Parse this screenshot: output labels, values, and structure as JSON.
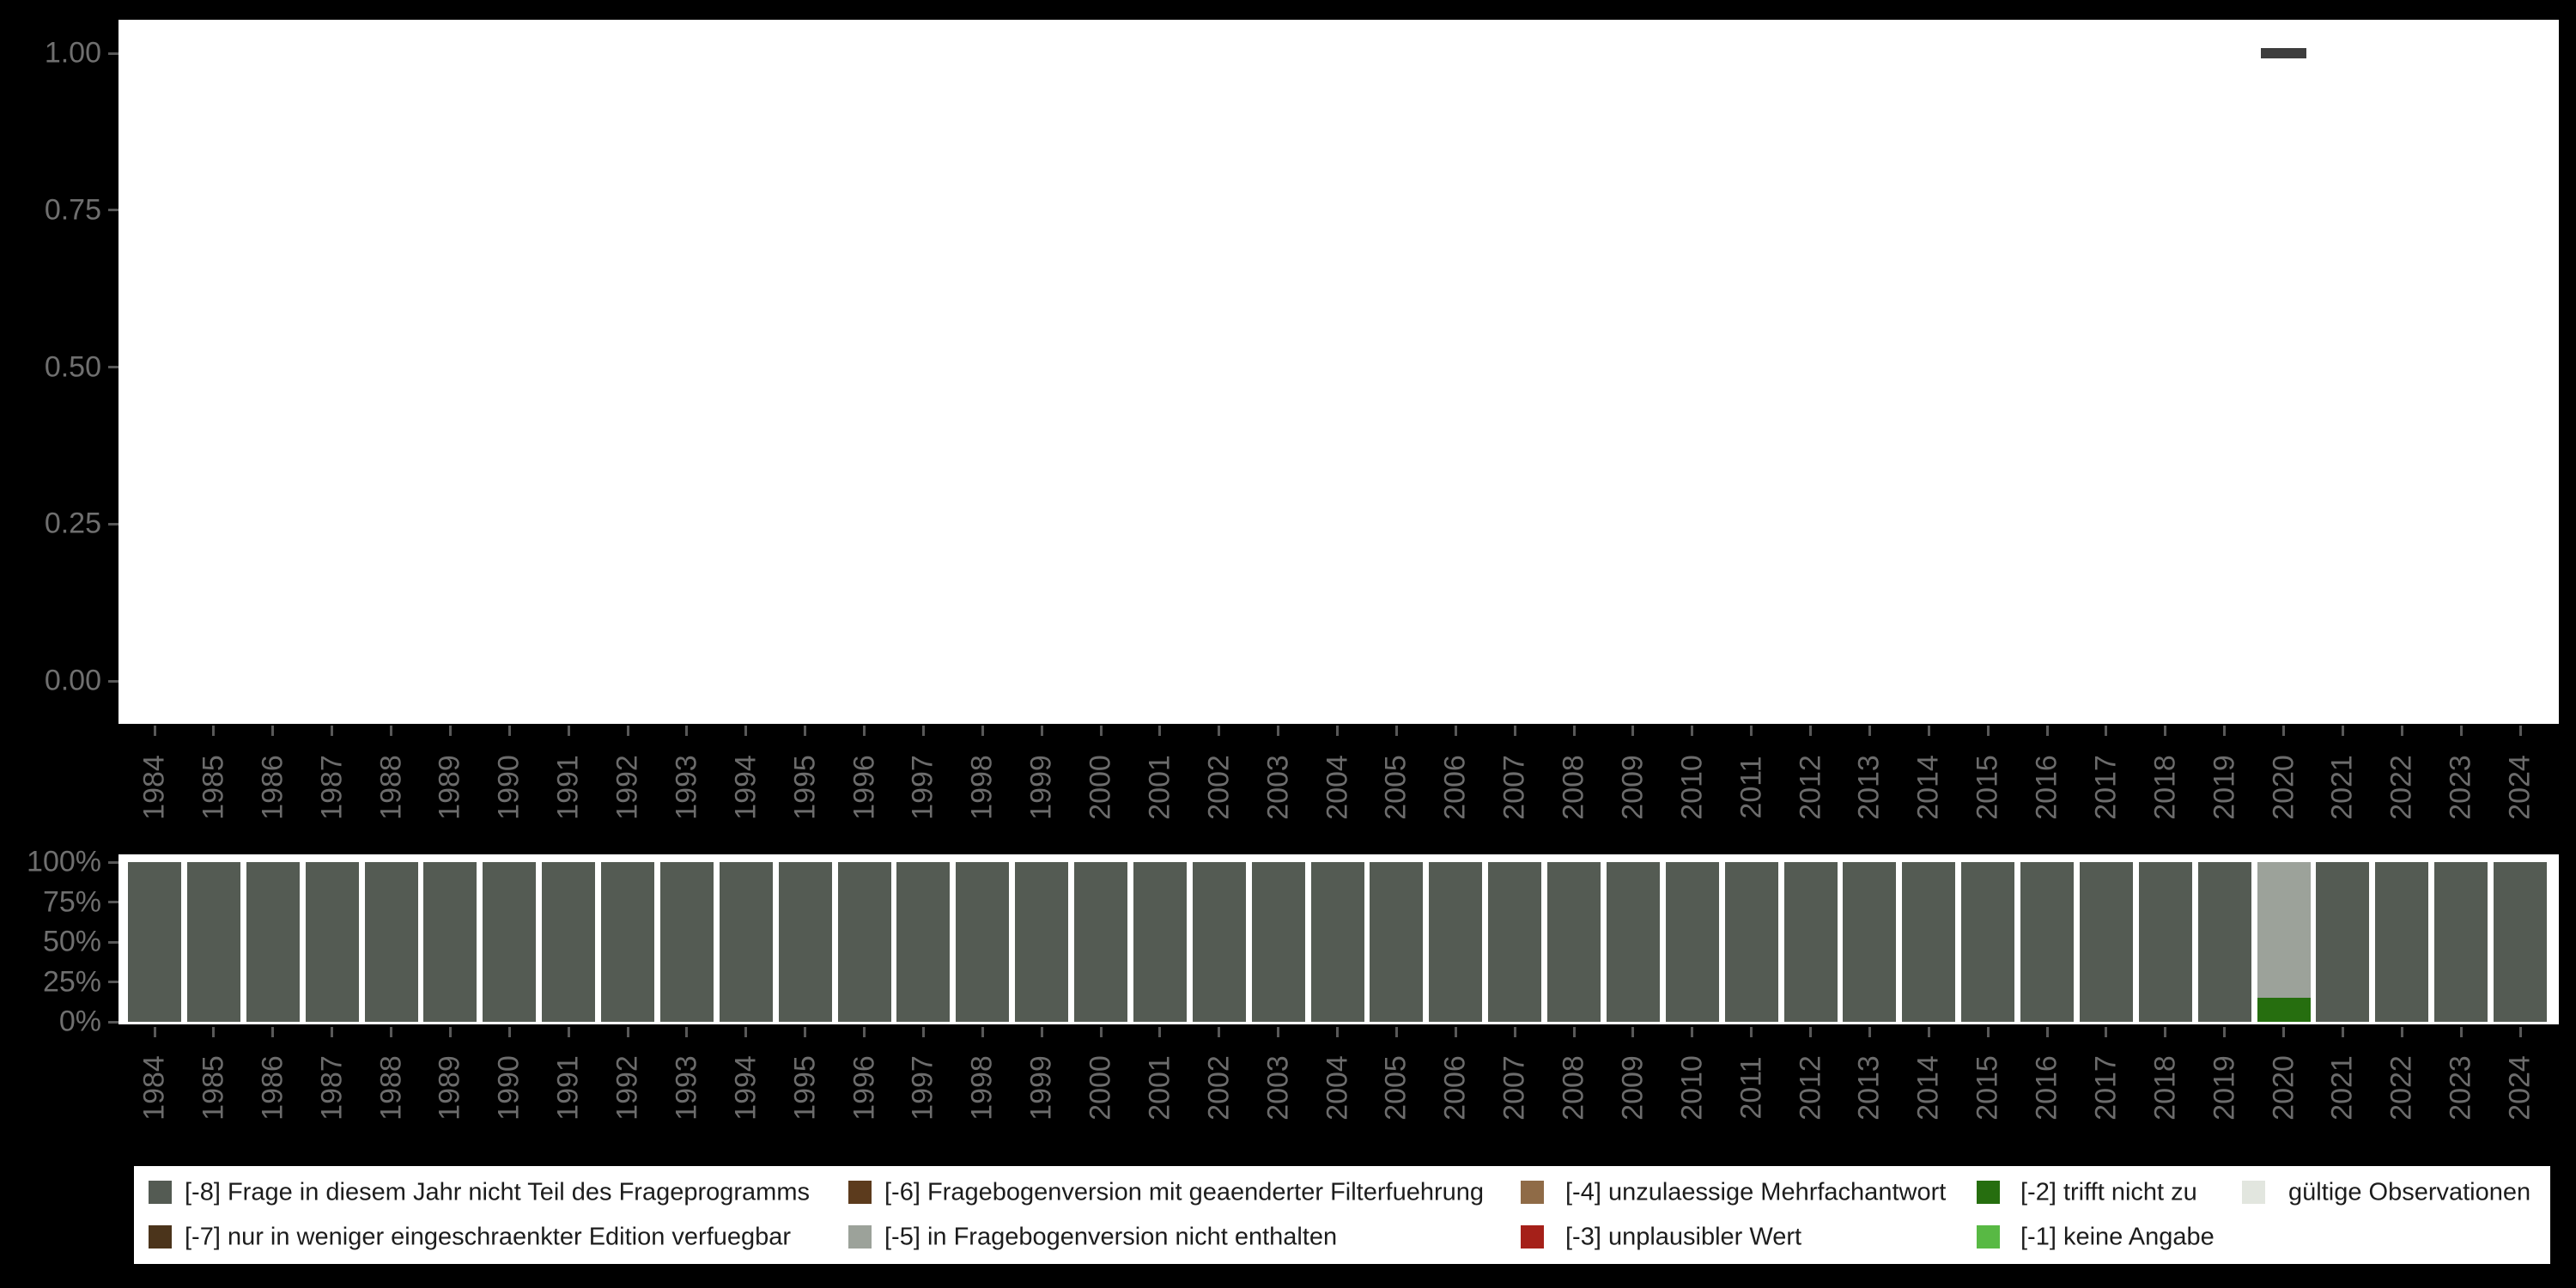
{
  "chart_data": [
    {
      "id": "proportion-panel",
      "type": "scatter",
      "title": "",
      "xlabel": "",
      "ylabel": "",
      "x_categories": [
        "1984",
        "1985",
        "1986",
        "1987",
        "1988",
        "1989",
        "1990",
        "1991",
        "1992",
        "1993",
        "1994",
        "1995",
        "1996",
        "1997",
        "1998",
        "1999",
        "2000",
        "2001",
        "2002",
        "2003",
        "2004",
        "2005",
        "2006",
        "2007",
        "2008",
        "2009",
        "2010",
        "2011",
        "2012",
        "2013",
        "2014",
        "2015",
        "2016",
        "2017",
        "2018",
        "2019",
        "2020",
        "2021",
        "2022",
        "2023",
        "2024"
      ],
      "points": [
        {
          "x": "2020",
          "y": 1.0
        }
      ],
      "marker": "horizontal-dash",
      "marker_color": "#3D3D3D",
      "ylim": [
        0,
        1
      ],
      "yticks": [
        "0.00",
        "0.25",
        "0.50",
        "0.75",
        "1.00"
      ],
      "ytick_values": [
        0,
        0.25,
        0.5,
        0.75,
        1.0
      ],
      "grid": false,
      "plot_background": "#ffffff",
      "page_background": "#000000"
    },
    {
      "id": "missings-panel",
      "type": "bar",
      "stacked": true,
      "unit": "percent",
      "title": "",
      "xlabel": "",
      "ylabel": "",
      "categories": [
        "1984",
        "1985",
        "1986",
        "1987",
        "1988",
        "1989",
        "1990",
        "1991",
        "1992",
        "1993",
        "1994",
        "1995",
        "1996",
        "1997",
        "1998",
        "1999",
        "2000",
        "2001",
        "2002",
        "2003",
        "2004",
        "2005",
        "2006",
        "2007",
        "2008",
        "2009",
        "2010",
        "2011",
        "2012",
        "2013",
        "2014",
        "2015",
        "2016",
        "2017",
        "2018",
        "2019",
        "2020",
        "2021",
        "2022",
        "2023",
        "2024"
      ],
      "series": [
        {
          "name": "[-8] Frage in diesem Jahr nicht Teil des Frageprogramms",
          "color": "#545B53",
          "values": [
            100,
            100,
            100,
            100,
            100,
            100,
            100,
            100,
            100,
            100,
            100,
            100,
            100,
            100,
            100,
            100,
            100,
            100,
            100,
            100,
            100,
            100,
            100,
            100,
            100,
            100,
            100,
            100,
            100,
            100,
            100,
            100,
            100,
            100,
            100,
            100,
            0,
            100,
            100,
            100,
            100
          ]
        },
        {
          "name": "[-5] in Fragebogenversion nicht enthalten",
          "color": "#9CA29A",
          "values": [
            0,
            0,
            0,
            0,
            0,
            0,
            0,
            0,
            0,
            0,
            0,
            0,
            0,
            0,
            0,
            0,
            0,
            0,
            0,
            0,
            0,
            0,
            0,
            0,
            0,
            0,
            0,
            0,
            0,
            0,
            0,
            0,
            0,
            0,
            0,
            0,
            85,
            0,
            0,
            0,
            0
          ]
        },
        {
          "name": "[-2] trifft nicht zu",
          "color": "#266E0F",
          "values": [
            0,
            0,
            0,
            0,
            0,
            0,
            0,
            0,
            0,
            0,
            0,
            0,
            0,
            0,
            0,
            0,
            0,
            0,
            0,
            0,
            0,
            0,
            0,
            0,
            0,
            0,
            0,
            0,
            0,
            0,
            0,
            0,
            0,
            0,
            0,
            0,
            15,
            0,
            0,
            0,
            0
          ]
        }
      ],
      "yticks": [
        "0%",
        "25%",
        "50%",
        "75%",
        "100%"
      ],
      "ytick_values": [
        0,
        25,
        50,
        75,
        100
      ],
      "ylim": [
        0,
        100
      ],
      "grid": false,
      "plot_background": "#ffffff",
      "page_background": "#000000"
    }
  ],
  "legend": {
    "background": "#ffffff",
    "entries": [
      {
        "label": "[-8] Frage in diesem Jahr nicht Teil des Frageprogramms",
        "color": "#545B53",
        "row": 0,
        "col": 0
      },
      {
        "label": "[-6] Fragebogenversion mit geaenderter Filterfuehrung",
        "color": "#5C3B1D",
        "row": 0,
        "col": 1
      },
      {
        "label": "[-4] unzulaessige Mehrfachantwort",
        "color": "#8F6B47",
        "row": 0,
        "col": 2
      },
      {
        "label": "[-2] trifft nicht zu",
        "color": "#266E0F",
        "row": 0,
        "col": 3
      },
      {
        "label": "gültige Observationen",
        "color": "#E2E6DF",
        "row": 0,
        "col": 4
      },
      {
        "label": "[-7] nur in weniger eingeschraenkter Edition verfuegbar",
        "color": "#4B341B",
        "row": 1,
        "col": 0
      },
      {
        "label": "[-5] in Fragebogenversion nicht enthalten",
        "color": "#9CA29A",
        "row": 1,
        "col": 1
      },
      {
        "label": "[-3] unplausibler Wert",
        "color": "#A52019",
        "row": 1,
        "col": 2
      },
      {
        "label": "[-1] keine Angabe",
        "color": "#58B944",
        "row": 1,
        "col": 3
      }
    ]
  },
  "colors": {
    "page_background": "#000000",
    "panel_background": "#ffffff",
    "axis_text": "#6F6F6F",
    "axis_tick": "#585858",
    "legend_text": "#1C1C1C",
    "mean_dash": "#3D3D3D"
  }
}
